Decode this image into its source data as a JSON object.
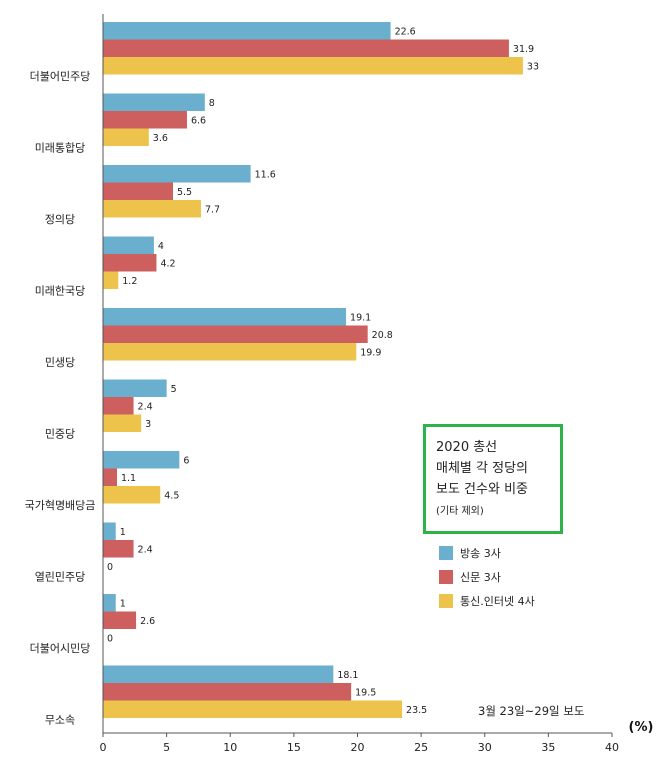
{
  "chart_data": {
    "type": "bar",
    "orientation": "horizontal",
    "title_lines": [
      "2020 총선",
      "매체별 각 정당의",
      "보도 건수와 비중"
    ],
    "subtitle": "(기타 제외)",
    "note": "3월 23일~29일 보도",
    "xlabel": "(%)",
    "xlim": [
      0,
      40
    ],
    "x_ticks": [
      0,
      5,
      10,
      15,
      20,
      25,
      30,
      35,
      40
    ],
    "categories": [
      "더불어민주당",
      "미래통합당",
      "정의당",
      "미래한국당",
      "민생당",
      "민중당",
      "국가혁명배당금",
      "열린민주당",
      "더불어시민당",
      "무소속"
    ],
    "series": [
      {
        "name": "방송 3사",
        "color": "#6aafcd",
        "values": [
          22.6,
          8,
          11.6,
          4,
          19.1,
          5,
          6,
          1,
          1,
          18.1
        ]
      },
      {
        "name": "신문 3사",
        "color": "#cd5f5f",
        "values": [
          31.9,
          6.6,
          5.5,
          4.2,
          20.8,
          2.4,
          1.1,
          2.4,
          2.6,
          19.5
        ]
      },
      {
        "name": "통신.인터넷 4사",
        "color": "#edc34b",
        "values": [
          33,
          3.6,
          7.7,
          1.2,
          19.9,
          3,
          4.5,
          0,
          0,
          23.5
        ]
      }
    ],
    "grid": false,
    "legend_position": "right"
  }
}
